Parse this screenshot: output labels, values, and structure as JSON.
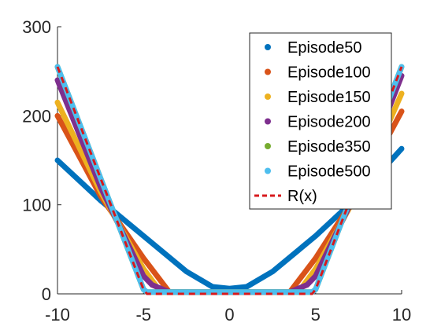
{
  "chart_data": {
    "type": "line",
    "title": "",
    "xlabel": "",
    "ylabel": "",
    "xlim": [
      -10,
      10
    ],
    "ylim": [
      0,
      300
    ],
    "xticks": [
      -10,
      -5,
      0,
      5,
      10
    ],
    "yticks": [
      0,
      100,
      200,
      300
    ],
    "xtick_labels": [
      "-10",
      "-5",
      "0",
      "5",
      "10"
    ],
    "ytick_labels": [
      "0",
      "100",
      "200",
      "300"
    ],
    "grid": false,
    "legend_position": "top-right",
    "series": [
      {
        "name": "Episode50",
        "color": "#0072BD",
        "style": "solid",
        "x": [
          -10,
          -7.5,
          -5,
          -2.5,
          -1,
          0,
          1,
          2.5,
          5,
          7.5,
          10
        ],
        "y": [
          150,
          105,
          65,
          25,
          8,
          6,
          8,
          25,
          65,
          110,
          163
        ]
      },
      {
        "name": "Episode100",
        "color": "#D95319",
        "style": "solid",
        "x": [
          -10,
          -7.5,
          -5,
          -3.5,
          -3,
          0,
          3,
          3.5,
          5,
          7.5,
          10
        ],
        "y": [
          200,
          110,
          40,
          2,
          2,
          2,
          2,
          2,
          40,
          115,
          205
        ]
      },
      {
        "name": "Episode150",
        "color": "#EDB120",
        "style": "solid",
        "x": [
          -10,
          -7.5,
          -5,
          -4,
          0,
          4,
          5,
          7.5,
          10
        ],
        "y": [
          215,
          115,
          28,
          2,
          2,
          2,
          28,
          115,
          225
        ]
      },
      {
        "name": "Episode200",
        "color": "#7E2F8E",
        "style": "solid",
        "x": [
          -10,
          -7.5,
          -5,
          -4.5,
          -3.5,
          0,
          3.5,
          4.5,
          5,
          7.5,
          10
        ],
        "y": [
          240,
          120,
          20,
          10,
          2,
          2,
          2,
          10,
          20,
          120,
          245
        ]
      },
      {
        "name": "Episode350",
        "color": "#77AC30",
        "style": "solid",
        "x": [
          -10,
          -5,
          -4.8,
          0,
          4.8,
          5,
          10
        ],
        "y": [
          255,
          5,
          2,
          2,
          2,
          5,
          255
        ]
      },
      {
        "name": "Episode500",
        "color": "#4DBEEE",
        "style": "solid",
        "x": [
          -10,
          -5,
          -4.8,
          0,
          4.8,
          5,
          10
        ],
        "y": [
          255,
          5,
          2,
          2,
          2,
          5,
          255
        ]
      },
      {
        "name": "R(x)",
        "color": "#D7191C",
        "style": "dashed",
        "x": [
          -10,
          -5,
          -4.8,
          0,
          4.8,
          5,
          10
        ],
        "y": [
          255,
          5,
          0,
          0,
          0,
          5,
          255
        ]
      }
    ]
  }
}
